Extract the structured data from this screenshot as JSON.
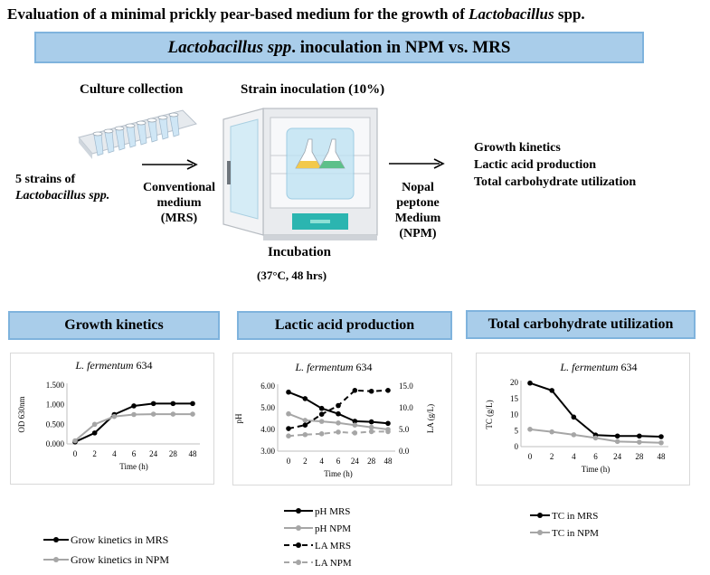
{
  "title": {
    "main": "Evaluation of a minimal prickly pear-based medium for the growth of ",
    "italic": "Lactobacillus",
    "suffix": " spp."
  },
  "banner": {
    "italic": "Lactobacillus spp",
    "rest": ". inoculation in NPM vs. MRS"
  },
  "workflow": {
    "culture_collection": "Culture collection",
    "strains_line1": "5 strains of",
    "strains_line2": "Lactobacillus spp.",
    "strain_inoculation": "Strain inoculation (10%)",
    "conventional_line1": "Conventional",
    "conventional_line2": "medium",
    "conventional_line3": "(MRS)",
    "incubation": "Incubation",
    "incubation_cond": "(37°C, 48 hrs)",
    "nopal_line1": "Nopal",
    "nopal_line2": "peptone",
    "nopal_line3": "Medium",
    "nopal_line4": "(NPM)",
    "outcome1": "Growth kinetics",
    "outcome2": "Lactic acid production",
    "outcome3": "Total carbohydrate utilization"
  },
  "sections": {
    "growth": "Growth kinetics",
    "lactic": "Lactic acid production",
    "carb": "Total carbohydrate utilization"
  },
  "chart_data": [
    {
      "type": "line",
      "title_italic": "L. fermentum",
      "title_num": " 634",
      "categories": [
        "0",
        "2",
        "4",
        "6",
        "24",
        "28",
        "48"
      ],
      "ylabel": "OD 630nm",
      "xlabel": "Time (h)",
      "ylim": [
        0,
        1.5
      ],
      "yticks": [
        "0.000",
        "0.500",
        "1.000",
        "1.500"
      ],
      "series": [
        {
          "name": "Grow kinetics in MRS",
          "values": [
            0.05,
            0.28,
            0.75,
            0.97,
            1.03,
            1.03,
            1.03
          ]
        },
        {
          "name": "Grow kinetics in NPM",
          "values": [
            0.08,
            0.5,
            0.7,
            0.75,
            0.76,
            0.76,
            0.76
          ]
        }
      ]
    },
    {
      "type": "line",
      "title_italic": "L. fermentum",
      "title_num": " 634",
      "categories": [
        "0",
        "2",
        "4",
        "6",
        "24",
        "28",
        "48"
      ],
      "ylabel": "pH",
      "y2label": "LA (g/L)",
      "xlabel": "Time (h)",
      "ylim": [
        3,
        6
      ],
      "y2lim": [
        0,
        15
      ],
      "yticks": [
        "3.00",
        "4.00",
        "5.00",
        "6.00"
      ],
      "y2ticks": [
        "0.0",
        "5.0",
        "10.0",
        "15.0"
      ],
      "series": [
        {
          "name": "pH MRS",
          "values": [
            5.72,
            5.42,
            4.97,
            4.72,
            4.38,
            4.35,
            4.28
          ],
          "axis": "left"
        },
        {
          "name": "pH NPM",
          "values": [
            4.72,
            4.42,
            4.37,
            4.3,
            4.2,
            4.1,
            4.0
          ],
          "axis": "left"
        },
        {
          "name": "LA MRS",
          "values": [
            5.2,
            6.0,
            8.5,
            10.5,
            14.0,
            13.8,
            14.0
          ],
          "axis": "right"
        },
        {
          "name": "LA NPM",
          "values": [
            3.5,
            3.8,
            4.0,
            4.4,
            4.2,
            4.5,
            4.5
          ],
          "axis": "right"
        }
      ]
    },
    {
      "type": "line",
      "title_italic": "L. fermentum",
      "title_num": " 634",
      "categories": [
        "0",
        "2",
        "4",
        "6",
        "24",
        "28",
        "48"
      ],
      "ylabel": "TC (g/L)",
      "xlabel": "Time (h)",
      "ylim": [
        0,
        20
      ],
      "yticks": [
        "0",
        "5",
        "10",
        "15",
        "20"
      ],
      "series": [
        {
          "name": "TC  in MRS",
          "values": [
            19.8,
            17.5,
            9.2,
            3.6,
            3.3,
            3.3,
            3.1
          ]
        },
        {
          "name": "TC  in NPM",
          "values": [
            5.4,
            4.6,
            3.7,
            2.7,
            1.6,
            1.4,
            1.2
          ]
        }
      ]
    }
  ],
  "colors": {
    "mrs": "#000000",
    "npm": "#a6a6a6",
    "banner": "#a9cdea",
    "banner_border": "#7fb3dd",
    "teal": "#2bb5b0"
  }
}
